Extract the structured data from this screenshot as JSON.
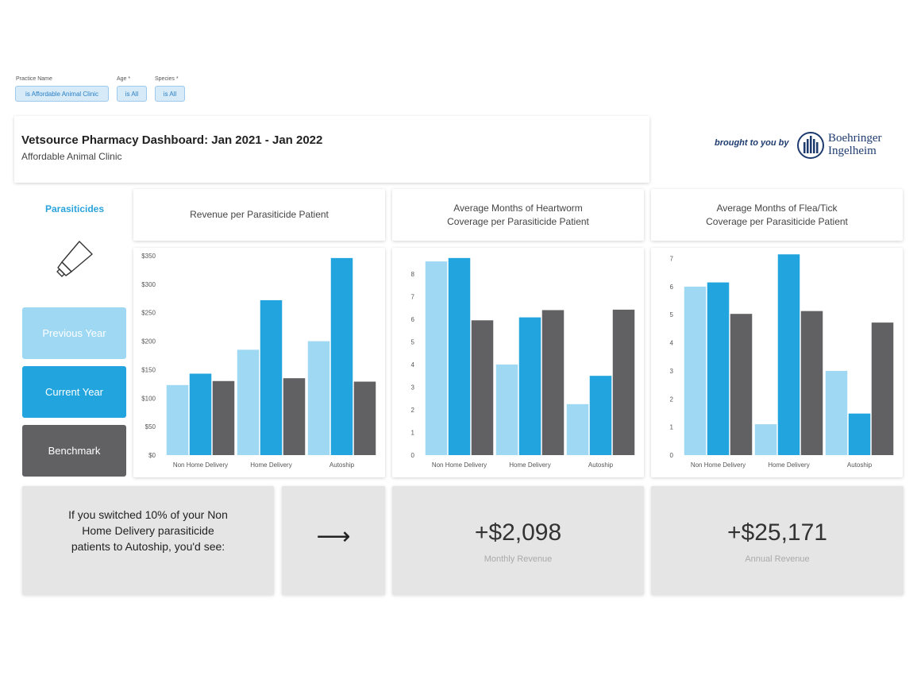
{
  "filters": [
    {
      "label": "Practice Name",
      "value": "is Affordable Animal Clinic"
    },
    {
      "label": "Age *",
      "value": "is All"
    },
    {
      "label": "Species *",
      "value": "is All"
    }
  ],
  "header": {
    "title": "Vetsource Pharmacy Dashboard: Jan 2021 - Jan 2022",
    "subtitle": "Affordable Animal Clinic"
  },
  "sponsor": {
    "brought_label": "brought to you by",
    "name_line1": "Boehringer",
    "name_line2": "Ingelheim"
  },
  "sidebar": {
    "section": "Parasiticides",
    "icon": "tube-icon"
  },
  "legend": [
    {
      "label": "Previous Year",
      "color": "#9fd8f2"
    },
    {
      "label": "Current Year",
      "color": "#22a5de"
    },
    {
      "label": "Benchmark",
      "color": "#616163"
    }
  ],
  "chart_titles": [
    "Revenue per Parasiticide Patient",
    "Average Months of Heartworm Coverage per Parasiticide Patient",
    "Average Months of Flea/Tick Coverage per Parasiticide Patient"
  ],
  "chart_data": [
    {
      "type": "bar",
      "title": "Revenue per Parasiticide Patient",
      "categories": [
        "Non Home Delivery",
        "Home Delivery",
        "Autoship"
      ],
      "yticks": [
        "$0",
        "$50",
        "$100",
        "$150",
        "$200",
        "$250",
        "$300",
        "$350"
      ],
      "ylim": [
        0,
        350
      ],
      "series": [
        {
          "name": "Previous Year",
          "values": [
            123,
            185,
            200
          ]
        },
        {
          "name": "Current Year",
          "values": [
            143,
            272,
            346
          ]
        },
        {
          "name": "Benchmark",
          "values": [
            130,
            135,
            129
          ]
        }
      ]
    },
    {
      "type": "bar",
      "title": "Average Months of Heartworm Coverage per Parasiticide Patient",
      "categories": [
        "Non Home Delivery",
        "Home Delivery",
        "Autoship"
      ],
      "yticks": [
        "0",
        "1",
        "2",
        "3",
        "4",
        "5",
        "6",
        "7",
        "8"
      ],
      "ylim": [
        0,
        8.8
      ],
      "series": [
        {
          "name": "Previous Year",
          "values": [
            8.55,
            4.0,
            2.25
          ]
        },
        {
          "name": "Current Year",
          "values": [
            8.7,
            6.08,
            3.5
          ]
        },
        {
          "name": "Benchmark",
          "values": [
            5.95,
            6.4,
            6.42
          ]
        }
      ]
    },
    {
      "type": "bar",
      "title": "Average Months of Flea/Tick Coverage per Parasiticide Patient",
      "categories": [
        "Non Home Delivery",
        "Home Delivery",
        "Autoship"
      ],
      "yticks": [
        "0",
        "1",
        "2",
        "3",
        "4",
        "5",
        "6",
        "7"
      ],
      "ylim": [
        0,
        7.1
      ],
      "series": [
        {
          "name": "Previous Year",
          "values": [
            6.0,
            1.1,
            3.0
          ]
        },
        {
          "name": "Current Year",
          "values": [
            6.15,
            7.15,
            1.48
          ]
        },
        {
          "name": "Benchmark",
          "values": [
            5.03,
            5.13,
            4.72
          ]
        }
      ]
    }
  ],
  "projection": {
    "message": "If you switched 10% of your Non Home Delivery parasiticide patients to Autoship, you'd see:",
    "arrow": "⟶",
    "monthly_value": "+$2,098",
    "monthly_label": "Monthly Revenue",
    "annual_value": "+$25,171",
    "annual_label": "Annual Revenue"
  }
}
